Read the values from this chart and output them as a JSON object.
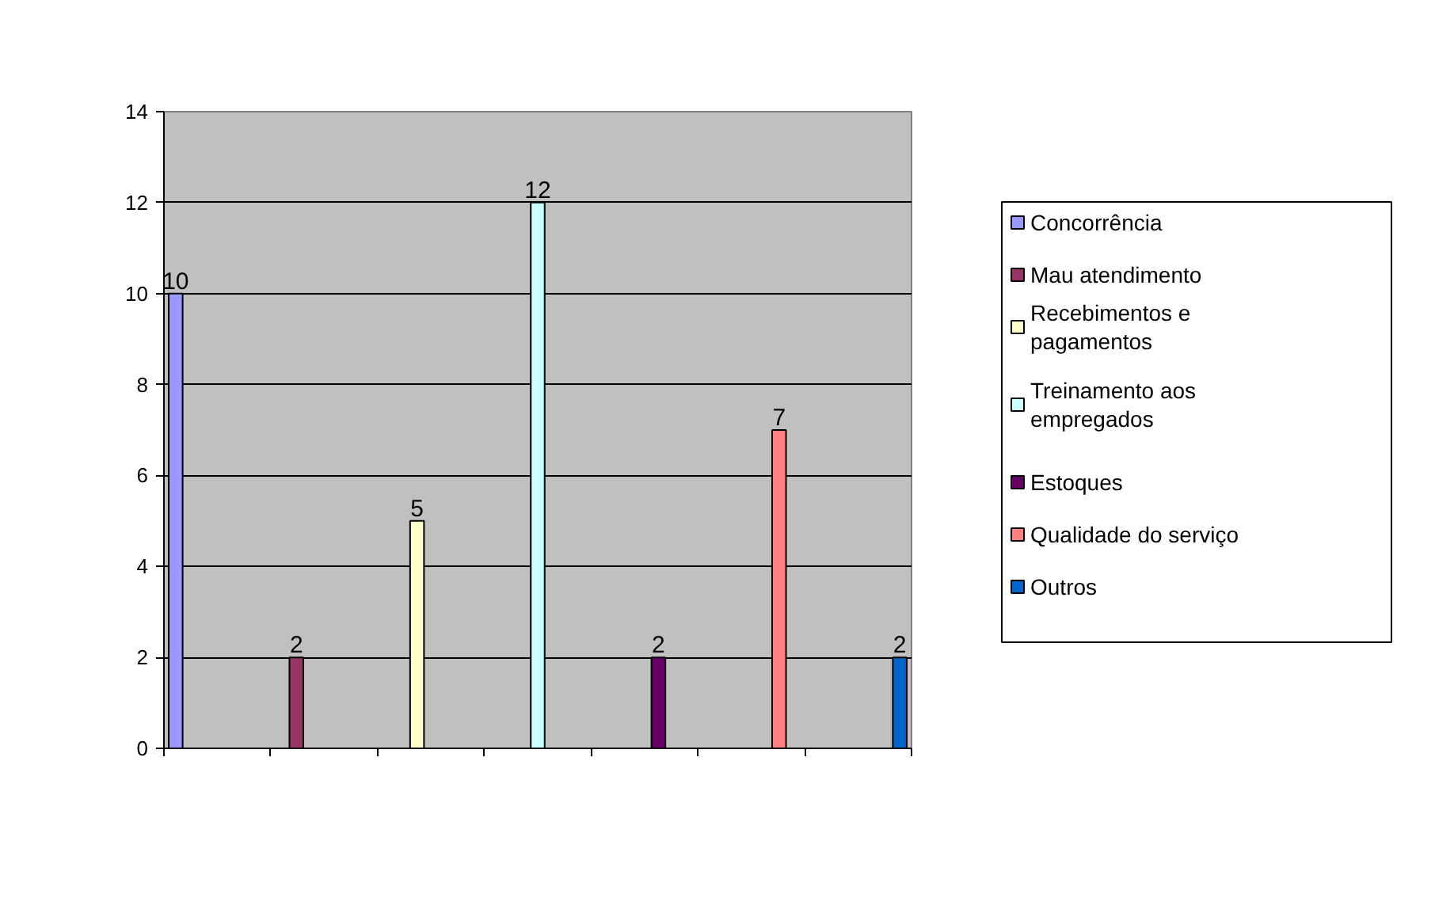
{
  "chart_data": {
    "type": "bar",
    "categories": [
      null,
      null,
      null,
      null,
      null,
      null,
      null
    ],
    "series": [
      {
        "name": "Concorrência",
        "color": "#9999ff",
        "values": [
          10,
          null,
          null,
          null,
          null,
          null,
          null
        ]
      },
      {
        "name": "Mau atendimento",
        "color": "#993366",
        "values": [
          null,
          2,
          null,
          null,
          null,
          null,
          null
        ]
      },
      {
        "name": "Recebimentos e pagamentos",
        "color": "#ffffcc",
        "values": [
          null,
          null,
          5,
          null,
          null,
          null,
          null
        ]
      },
      {
        "name": "Treinamento aos empregados",
        "color": "#ccffff",
        "values": [
          null,
          null,
          null,
          12,
          null,
          null,
          null
        ]
      },
      {
        "name": "Estoques",
        "color": "#660066",
        "values": [
          null,
          null,
          null,
          null,
          2,
          null,
          null
        ]
      },
      {
        "name": "Qualidade do serviço",
        "color": "#ff8080",
        "values": [
          null,
          null,
          null,
          null,
          null,
          7,
          null
        ]
      },
      {
        "name": "Outros",
        "color": "#0066cc",
        "values": [
          null,
          null,
          null,
          null,
          null,
          null,
          2
        ]
      }
    ],
    "ylim": [
      0,
      14
    ],
    "yticks": [
      0,
      2,
      4,
      6,
      8,
      10,
      12,
      14
    ],
    "grid": "y",
    "legend": "right",
    "data_labels": true
  }
}
